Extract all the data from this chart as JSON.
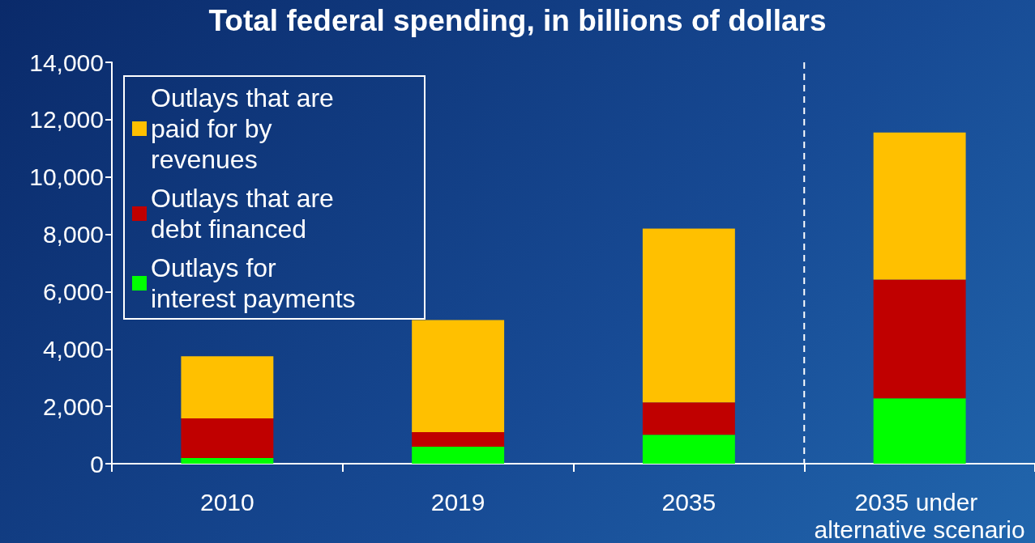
{
  "chart_data": {
    "type": "bar",
    "title": "Total federal spending, in billions of dollars",
    "categories": [
      "2010",
      "2019",
      "2035",
      "2035 under alternative scenario"
    ],
    "stacked": true,
    "series": [
      {
        "name": "Outlays for interest payments",
        "color": "#00ff00",
        "values": [
          200,
          590,
          1010,
          2280
        ]
      },
      {
        "name": "Outlays that are debt financed",
        "color": "#c00000",
        "values": [
          1380,
          510,
          1130,
          4140
        ]
      },
      {
        "name": "Outlays that are paid for by revenues",
        "color": "#ffc000",
        "values": [
          2170,
          3910,
          6060,
          5130
        ]
      }
    ],
    "ylim": [
      0,
      14000
    ],
    "yticks": [
      0,
      {
        "value": 2000,
        "label": "2,000"
      },
      {
        "value": 4000,
        "label": "4,000"
      },
      {
        "value": 6000,
        "label": "6,000"
      },
      {
        "value": 8000,
        "label": "8,000"
      },
      {
        "value": 10000,
        "label": "10,000"
      },
      {
        "value": 12000,
        "label": "12,000"
      },
      {
        "value": 14000,
        "label": "14,000"
      }
    ],
    "grid": false,
    "legend": "top left"
  }
}
